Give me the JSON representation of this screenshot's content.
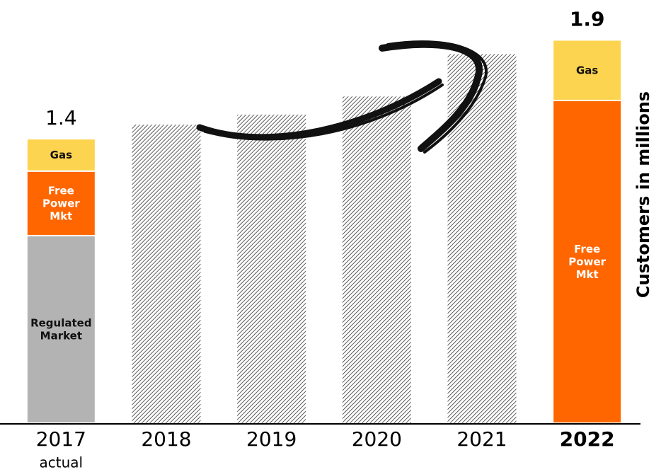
{
  "chart_data": {
    "type": "stacked_bar",
    "y_label": "Customers in millions",
    "categories": [
      "2017",
      "2018",
      "2019",
      "2020",
      "2021",
      "2022"
    ],
    "category_notes": [
      "actual",
      null,
      null,
      null,
      null,
      null
    ],
    "totals": [
      1.4,
      null,
      null,
      null,
      null,
      1.9
    ],
    "ylim": [
      0,
      2
    ],
    "series": [
      {
        "name": "Regulated Market",
        "color": "#b3b3b3",
        "label_color": "#111111",
        "values": [
          0.93,
          null,
          null,
          null,
          null,
          null
        ]
      },
      {
        "name": "Free Power Mkt",
        "color": "#ff6600",
        "label_color": "#ffffff",
        "values": [
          0.32,
          null,
          null,
          null,
          null,
          1.6
        ]
      },
      {
        "name": "Gas",
        "color": "#fdd44f",
        "label_color": "#111111",
        "values": [
          0.16,
          null,
          null,
          null,
          null,
          0.3
        ]
      },
      {
        "pattern": "hatch",
        "values": [
          null,
          1.48,
          1.53,
          1.62,
          1.83,
          null
        ]
      }
    ]
  }
}
